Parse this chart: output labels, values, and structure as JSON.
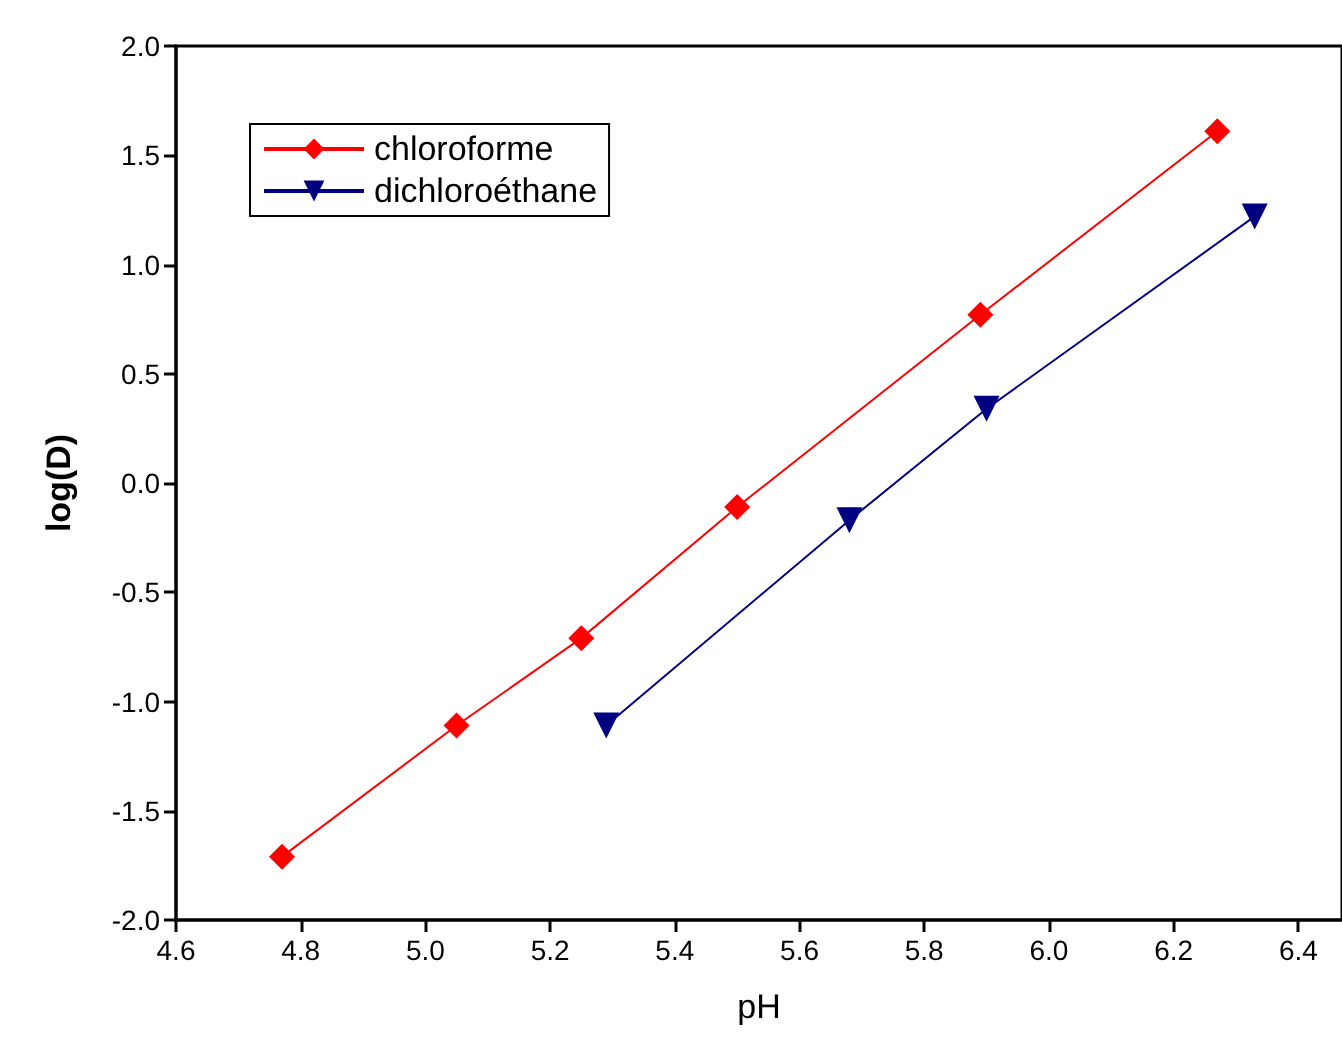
{
  "chart_data": {
    "type": "line",
    "xlabel": "pH",
    "ylabel": "log(D)",
    "xlim": [
      4.6,
      6.47
    ],
    "xticks": [
      4.6,
      4.8,
      {
        "value": 5,
        "label": "5.0"
      },
      5.2,
      5.4,
      5.6,
      5.8,
      {
        "value": 6,
        "label": "6.0"
      },
      6.2,
      6.4
    ],
    "ylim": [
      -2,
      2
    ],
    "yticks": [
      {
        "value": -2,
        "label": "-2.0"
      },
      -1.5,
      {
        "value": -1,
        "label": "-1.0"
      },
      -0.5,
      {
        "value": 0,
        "label": "0.0"
      },
      0.5,
      {
        "value": 1,
        "label": "1.0"
      },
      1.5,
      {
        "value": 2,
        "label": "2.0"
      }
    ],
    "grid": false,
    "legend": "top left",
    "line_style": "solid",
    "series": [
      {
        "name": "chloroforme",
        "color": "#ff0000",
        "marker": "diamond",
        "x": [
          4.77,
          5.05,
          5.25,
          5.5,
          5.89,
          6.27
        ],
        "values": [
          -1.71,
          -1.11,
          -0.71,
          -0.11,
          0.77,
          1.61
        ]
      },
      {
        "name": "dichloroéthane",
        "color": "#000080",
        "marker": "triangle",
        "x": [
          5.29,
          5.68,
          5.9,
          6.33
        ],
        "values": [
          -1.11,
          -0.17,
          0.34,
          1.22
        ]
      }
    ]
  }
}
